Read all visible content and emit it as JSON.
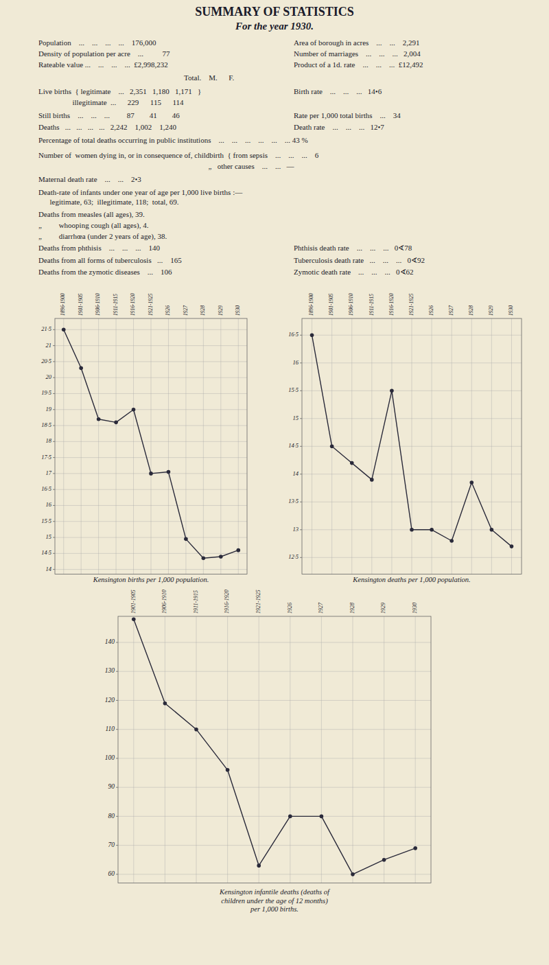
{
  "title": "SUMMARY  OF  STATISTICS",
  "subtitle": "For the year 1930.",
  "annotations": [
    "Population    ...    ...    ...    ...    176,000",
    "Area of borough in acres    ...    ...    2,291",
    "Density of population per acre    ...          77",
    "Number of marriages    ...    ...    ...   2,004",
    "Rateable value ...    ...    ...    ...  £2,998,232",
    "Product of a 1d. rate    ...    ...    ...  £12,492",
    "Total.    M.      F.",
    "Live births  { legitimate    ...   2,351   1,180   1,171   }",
    "Birth rate    ...    ...    ...   14•6",
    "                  illegitimate  ...      229      115      114",
    "Still births    ...    ...    ...         87        41        46",
    "Rate per 1,000 total births    ...    34",
    "Deaths   ...   ...   ...   ...   2,242    1,002    1,240",
    "Death rate    ...    ...    ...   12•7",
    "Percentage of total deaths occurring in public institutions    ...    ...    ...    ...    ...    ... 43 %",
    "Number of  women dying in, or in consequence of, childbirth  { from sepsis    ...    ...    ...    6",
    "                                                                                          „   other causes    ...    ...   —",
    "Maternal death rate    ...    ...    2•3",
    "Death-rate of infants under one year of age per 1,000 live births :—",
    "      legitimate, 63;  illegitimate, 118;  total, 69.",
    "Deaths from measles (all ages), 39.",
    "„         whooping cough (all ages), 4.",
    "„         diarrhœa (under 2 years of age), 38.",
    "Deaths from phthisis    ...    ...    ...    140",
    "Phthisis death rate    ...    ...    ...   0∢78",
    "Deaths from all forms of tuberculosis   ...    165",
    "Tuberculosis death rate   ...    ...    ...   0∢92",
    "Deaths from the zymotic diseases    ...    106",
    "Zymotic death rate    ...    ...    ...   0∢62"
  ],
  "chart_data": [
    {
      "type": "line",
      "xlabel": "Kensington births per 1,000 population.",
      "categories": [
        "1896-1900",
        "1901-1905",
        "1906-1910",
        "1911-1915",
        "1916-1920",
        "1921-1925",
        "1926",
        "1927",
        "1928",
        "1929",
        "1930"
      ],
      "values": [
        21.5,
        20.3,
        18.7,
        18.6,
        19.0,
        17.0,
        17.05,
        14.95,
        14.35,
        14.4,
        14.6
      ],
      "color": "#2a2a3a",
      "marker": "circle",
      "grid": true,
      "ylim": [
        13.85,
        21.85
      ],
      "yticks": [
        14,
        {
          "value": 14.5,
          "label": "14·5"
        },
        15,
        {
          "value": 15.5,
          "label": "15·5"
        },
        16,
        {
          "value": 16.5,
          "label": "16·5"
        },
        17,
        {
          "value": 17.5,
          "label": "17·5"
        },
        18,
        {
          "value": 18.5,
          "label": "18·5"
        },
        19,
        {
          "value": 19.5,
          "label": "19·5"
        },
        20,
        {
          "value": 20.5,
          "label": "20·5"
        },
        21,
        {
          "value": 21.5,
          "label": "21·5"
        }
      ]
    },
    {
      "type": "line",
      "xlabel": "Kensington deaths per 1,000 population.",
      "categories": [
        "1896-1900",
        "1901-1905",
        "1906-1910",
        "1911-1915",
        "1916-1920",
        "1921-1925",
        "1926",
        "1927",
        "1928",
        "1929",
        "1930"
      ],
      "values": [
        16.5,
        14.5,
        14.2,
        13.9,
        15.5,
        13.0,
        13.0,
        12.8,
        13.85,
        13.0,
        12.7
      ],
      "color": "#2a2a3a",
      "marker": "circle",
      "grid": true,
      "ylim": [
        12.2,
        16.8
      ],
      "yticks": [
        {
          "value": 12.5,
          "label": "12·5"
        },
        13,
        {
          "value": 13.5,
          "label": "13·5"
        },
        14,
        {
          "value": 14.5,
          "label": "14·5"
        },
        15,
        {
          "value": 15.5,
          "label": "15·5"
        },
        16,
        {
          "value": 16.5,
          "label": "16·5"
        }
      ]
    },
    {
      "type": "line",
      "xlabel": "Kensington infantile deaths (deaths of\nchildren under the age of 12 months)\nper 1,000 births.",
      "categories": [
        "1901-1905",
        "1906-1910",
        "1911-1915",
        "1916-1920",
        "1921-1925",
        "1926",
        "1927",
        "1928",
        "1929",
        "1930"
      ],
      "values": [
        148,
        119,
        110,
        96,
        63,
        80,
        80,
        60,
        65,
        69
      ],
      "color": "#2a2a3a",
      "marker": "circle",
      "grid": true,
      "ylim": [
        57,
        149
      ],
      "yticks": [
        60,
        70,
        80,
        90,
        100,
        110,
        120,
        130,
        140
      ]
    }
  ]
}
